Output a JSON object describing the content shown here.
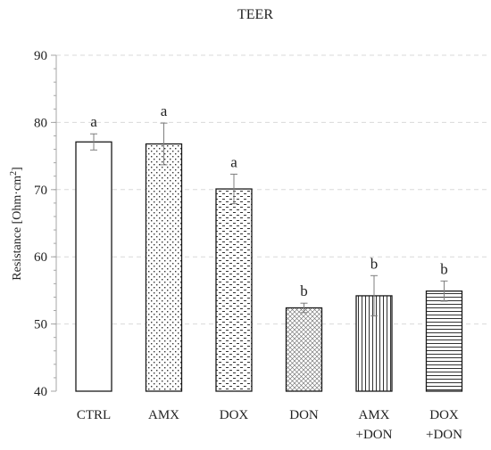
{
  "chart_data": {
    "type": "bar",
    "title": "TEER",
    "ylabel_main": "Resistance [Ohm·cm",
    "ylabel_sup": "2",
    "ylabel_end": "]",
    "ylim": [
      40,
      90
    ],
    "yticks": [
      40,
      50,
      60,
      70,
      80,
      90
    ],
    "grid": true,
    "categories": [
      {
        "lines": [
          "CTRL"
        ]
      },
      {
        "lines": [
          "AMX"
        ]
      },
      {
        "lines": [
          "DOX"
        ]
      },
      {
        "lines": [
          "DON"
        ]
      },
      {
        "lines": [
          "AMX",
          "+DON"
        ]
      },
      {
        "lines": [
          "DOX",
          "+DON"
        ]
      }
    ],
    "values": [
      77.1,
      76.8,
      70.1,
      52.4,
      54.2,
      54.9
    ],
    "errors": [
      1.2,
      3.1,
      2.2,
      0.7,
      3.0,
      1.5
    ],
    "significance": [
      "a",
      "a",
      "a",
      "b",
      "b",
      "b"
    ],
    "patterns": [
      "none",
      "dots",
      "dashes",
      "crosshatch",
      "vertical-lines",
      "horizontal-lines"
    ],
    "colors": {
      "bar_stroke": "#1a1a1a",
      "grid": "#d9d9d9",
      "error": "#7f7f7f",
      "axis": "#a6a6a6"
    }
  }
}
